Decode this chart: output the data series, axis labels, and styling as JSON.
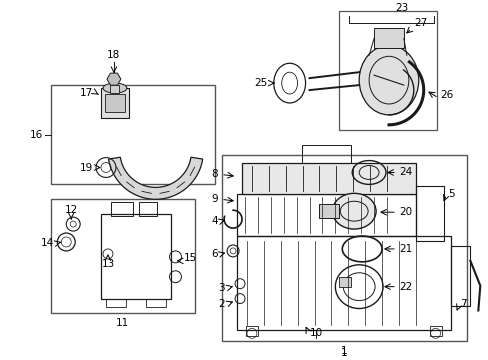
{
  "bg_color": "#ffffff",
  "fg_color": "#000000",
  "fig_width": 4.89,
  "fig_height": 3.6,
  "dpi": 100,
  "lc": "#1a1a1a",
  "ac": "#000000",
  "label_fs": 7.5
}
